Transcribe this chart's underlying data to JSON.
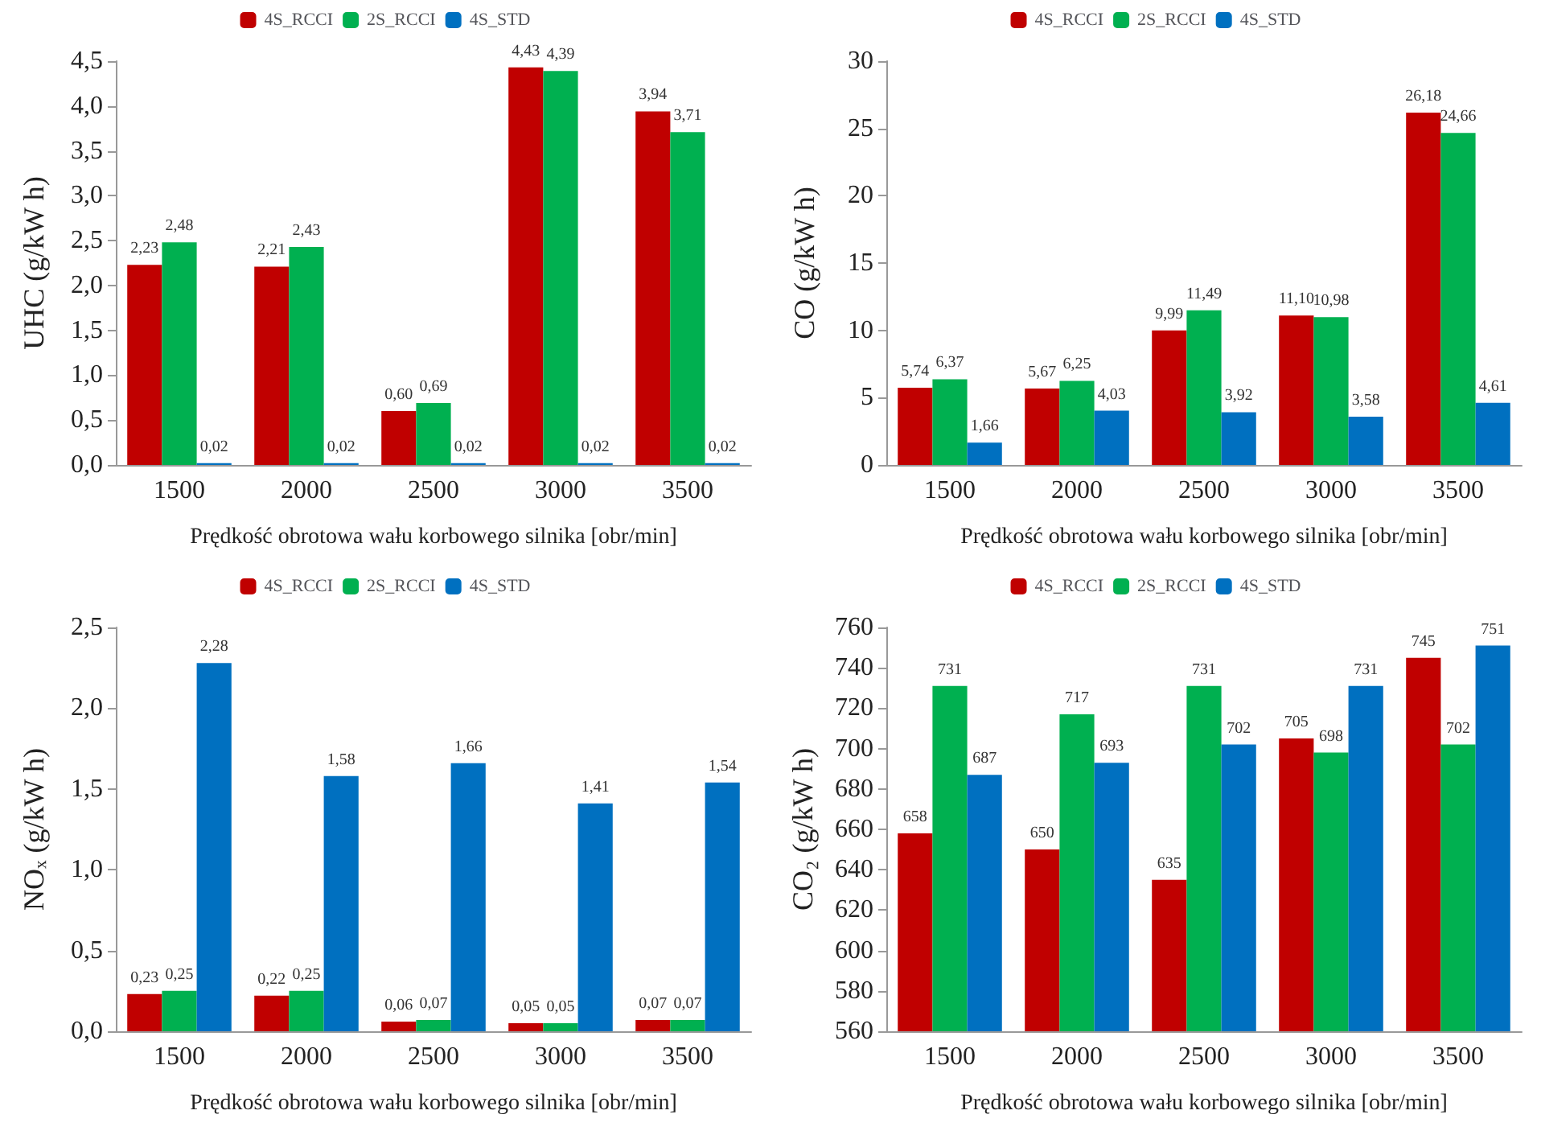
{
  "chart_data": [
    {
      "type": "bar",
      "ylabel": "UHC (g/kW h)",
      "xlabel": "Prędkość obrotowa wału korbowego silnika [obr/min]",
      "categories": [
        "1500",
        "2000",
        "2500",
        "3000",
        "3500"
      ],
      "legend": "top",
      "ylim": [
        0,
        4.5
      ],
      "yticks": [
        {
          "value": 0,
          "label": "0,0"
        },
        {
          "value": 0.5,
          "label": "0,5"
        },
        {
          "value": 1,
          "label": "1,0"
        },
        {
          "value": 1.5,
          "label": "1,5"
        },
        {
          "value": 2,
          "label": "2,0"
        },
        {
          "value": 2.5,
          "label": "2,5"
        },
        {
          "value": 3,
          "label": "3,0"
        },
        {
          "value": 3.5,
          "label": "3,5"
        },
        {
          "value": 4,
          "label": "4,0"
        },
        {
          "value": 4.5,
          "label": "4,5"
        }
      ],
      "series": [
        {
          "name": "4S_RCCI",
          "color": "#c00000",
          "values": [
            2.23,
            2.21,
            0.6,
            4.43,
            3.94
          ],
          "value_labels": [
            "2,23",
            "2,21",
            "0,60",
            "4,43",
            "3,94"
          ]
        },
        {
          "name": "2S_RCCI",
          "color": "#00b050",
          "values": [
            2.48,
            2.43,
            0.69,
            4.39,
            3.71
          ],
          "value_labels": [
            "2,48",
            "2,43",
            "0,69",
            "4,39",
            "3,71"
          ]
        },
        {
          "name": "4S_STD",
          "color": "#0070c0",
          "values": [
            0.02,
            0.02,
            0.02,
            0.02,
            0.02
          ],
          "value_labels": [
            "0,02",
            "0,02",
            "0,02",
            "0,02",
            "0,02"
          ]
        }
      ]
    },
    {
      "type": "bar",
      "ylabel": "CO (g/kW h)",
      "xlabel": "Prędkość obrotowa wału korbowego silnika [obr/min]",
      "categories": [
        "1500",
        "2000",
        "2500",
        "3000",
        "3500"
      ],
      "legend": "top",
      "ylim": [
        0,
        30
      ],
      "yticks": [
        0,
        5,
        10,
        15,
        20,
        25,
        30
      ],
      "series": [
        {
          "name": "4S_RCCI",
          "color": "#c00000",
          "values": [
            5.74,
            5.67,
            9.99,
            11.1,
            26.18
          ],
          "value_labels": [
            "5,74",
            "5,67",
            "9,99",
            "11,10",
            "26,18"
          ]
        },
        {
          "name": "2S_RCCI",
          "color": "#00b050",
          "values": [
            6.37,
            6.25,
            11.49,
            10.98,
            24.66
          ],
          "value_labels": [
            "6,37",
            "6,25",
            "11,49",
            "10,98",
            "24,66"
          ]
        },
        {
          "name": "4S_STD",
          "color": "#0070c0",
          "values": [
            1.66,
            4.03,
            3.92,
            3.58,
            4.61
          ],
          "value_labels": [
            "1,66",
            "4,03",
            "3,92",
            "3,58",
            "4,61"
          ]
        }
      ]
    },
    {
      "type": "bar",
      "ylabel": "NOₓ (g/kW h)",
      "xlabel": "Prędkość obrotowa wału korbowego silnika [obr/min]",
      "categories": [
        "1500",
        "2000",
        "2500",
        "3000",
        "3500"
      ],
      "legend": "top",
      "ylim": [
        0,
        2.5
      ],
      "yticks": [
        {
          "value": 0,
          "label": "0,0"
        },
        {
          "value": 0.5,
          "label": "0,5"
        },
        {
          "value": 1,
          "label": "1,0"
        },
        {
          "value": 1.5,
          "label": "1,5"
        },
        {
          "value": 2,
          "label": "2,0"
        },
        {
          "value": 2.5,
          "label": "2,5"
        }
      ],
      "series": [
        {
          "name": "4S_RCCI",
          "color": "#c00000",
          "values": [
            0.23,
            0.22,
            0.06,
            0.05,
            0.07
          ],
          "value_labels": [
            "0,23",
            "0,22",
            "0,06",
            "0,05",
            "0,07"
          ]
        },
        {
          "name": "2S_RCCI",
          "color": "#00b050",
          "values": [
            0.25,
            0.25,
            0.07,
            0.05,
            0.07
          ],
          "value_labels": [
            "0,25",
            "0,25",
            "0,07",
            "0,05",
            "0,07"
          ]
        },
        {
          "name": "4S_STD",
          "color": "#0070c0",
          "values": [
            2.28,
            1.58,
            1.66,
            1.41,
            1.54
          ],
          "value_labels": [
            "2,28",
            "1,58",
            "1,66",
            "1,41",
            "1,54"
          ]
        }
      ]
    },
    {
      "type": "bar",
      "ylabel": "CO₂ (g/kW h)",
      "xlabel": "Prędkość obrotowa wału korbowego silnika [obr/min]",
      "categories": [
        "1500",
        "2000",
        "2500",
        "3000",
        "3500"
      ],
      "legend": "top",
      "data_labels": true,
      "ylim": [
        560,
        760
      ],
      "yticks": [
        560,
        580,
        600,
        620,
        640,
        660,
        680,
        700,
        720,
        740,
        760
      ],
      "series": [
        {
          "name": "4S_RCCI",
          "color": "#c00000",
          "values": [
            658,
            650,
            635,
            705,
            745
          ]
        },
        {
          "name": "2S_RCCI",
          "color": "#00b050",
          "values": [
            731,
            717,
            731,
            698,
            702
          ]
        },
        {
          "name": "4S_STD",
          "color": "#0070c0",
          "values": [
            687,
            693,
            702,
            731,
            751
          ]
        }
      ]
    }
  ]
}
